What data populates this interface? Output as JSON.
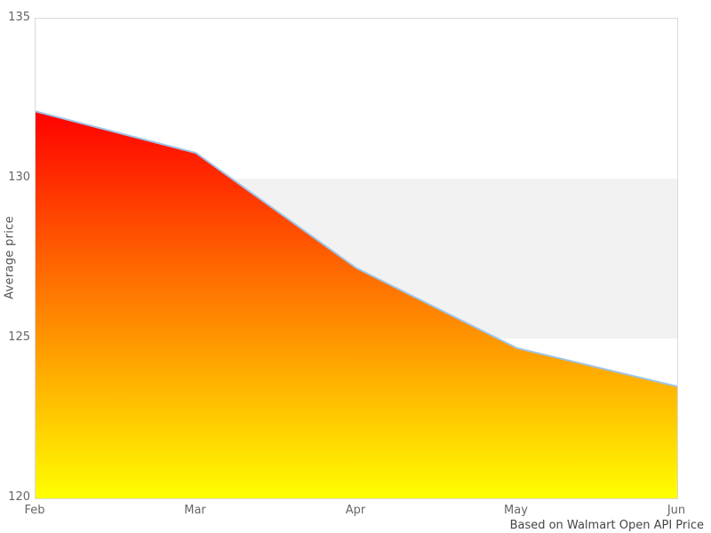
{
  "chart_data": {
    "type": "area",
    "categories": [
      "Feb",
      "Mar",
      "Apr",
      "May",
      "Jun"
    ],
    "values": [
      132.1,
      130.8,
      127.2,
      124.7,
      123.5
    ],
    "series_name": "Average price",
    "title": "",
    "xlabel": "",
    "ylabel": "Average price",
    "ylim": [
      120,
      135
    ],
    "yticks": [
      120,
      125,
      130,
      135
    ],
    "grid": "off",
    "legend": "none",
    "caption": "Based on Walmart Open API Price",
    "band": {
      "from": 125,
      "to": 130,
      "color": "#f2f2f2"
    },
    "colors": {
      "gradient_top": "#ff0000",
      "gradient_bottom": "#ffff00",
      "line": "#9ec5e8",
      "plot_border": "#d9d9d9",
      "tick_text": "#666666",
      "axis_title_text": "#555555",
      "caption_text": "#444444",
      "background": "#ffffff"
    }
  }
}
